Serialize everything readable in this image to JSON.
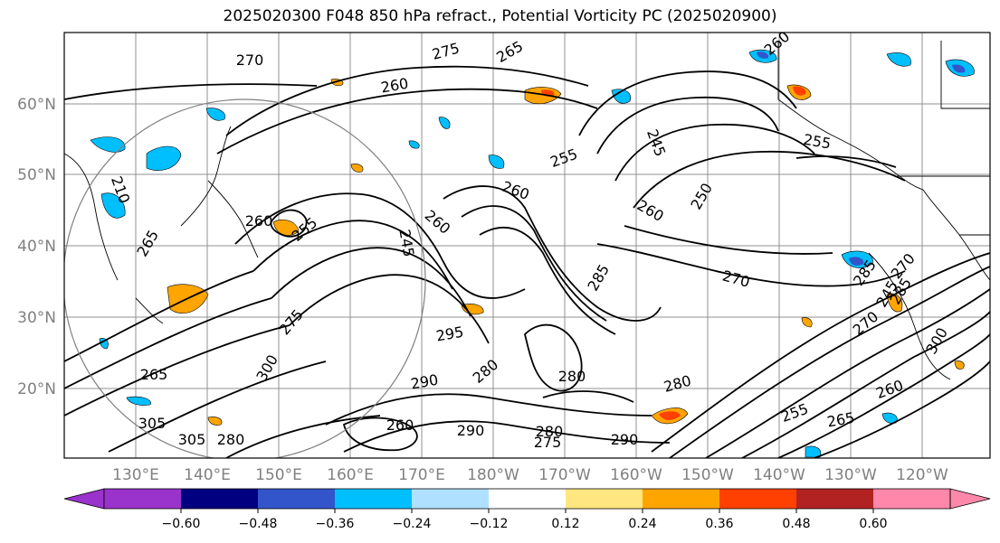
{
  "title": "2025020300 F048 850 hPa refract., Potential Vorticity PC (2025020900)",
  "lat_labels": [
    "60°N",
    "50°N",
    "40°N",
    "30°N",
    "20°N"
  ],
  "lon_labels": [
    "130°E",
    "140°E",
    "150°E",
    "160°E",
    "170°E",
    "180°W",
    "170°W",
    "160°W",
    "150°W",
    "140°W",
    "130°W",
    "120°W"
  ],
  "colorbar": {
    "tick_labels": [
      "−0.60",
      "−0.48",
      "−0.36",
      "−0.24",
      "−0.12",
      "0.12",
      "0.24",
      "0.36",
      "0.48",
      "0.60"
    ],
    "colors": [
      "#9933cc",
      "#000080",
      "#3355cc",
      "#00bfff",
      "#b0e0ff",
      "#ffffff",
      "#ffe680",
      "#ffa500",
      "#ff4000",
      "#b22222",
      "#ff88aa"
    ]
  },
  "contour_labels": [
    "270",
    "275",
    "265",
    "260",
    "255",
    "260",
    "245",
    "255",
    "260",
    "250",
    "270",
    "210",
    "265",
    "260",
    "255",
    "260",
    "260",
    "245",
    "285",
    "245",
    "270",
    "275",
    "270",
    "280",
    "285",
    "290",
    "295",
    "300",
    "305",
    "280",
    "280",
    "275",
    "280",
    "290",
    "260",
    "265",
    "300",
    "305",
    "280",
    "290",
    "255",
    "260",
    "265",
    "285"
  ],
  "colors": {
    "pv_neg": "#00bfff",
    "pv_neg_strong": "#3355cc",
    "pv_pos": "#ffa500",
    "pv_pos_strong": "#ff4000",
    "grid": "#808080"
  }
}
